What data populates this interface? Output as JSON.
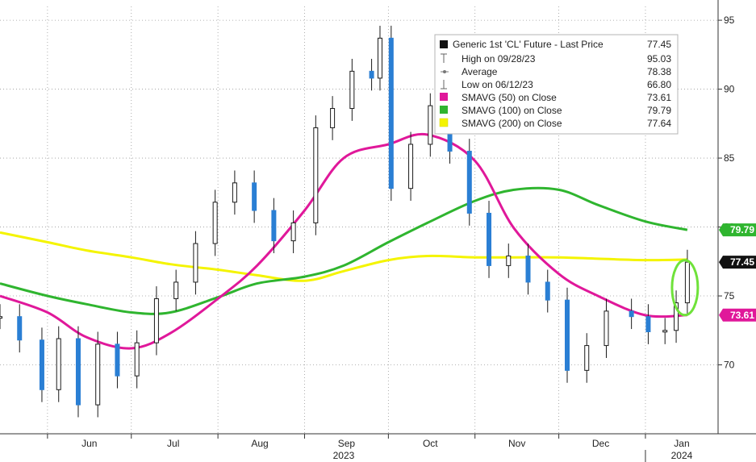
{
  "chart_data": {
    "type": "line",
    "title": "",
    "xlabel": "",
    "ylabel": "",
    "ylim": [
      65,
      96
    ],
    "y_ticks": [
      "95",
      "90",
      "85",
      "80",
      "75",
      "70"
    ],
    "y_tick_values": [
      95,
      90,
      85,
      80,
      75,
      70
    ],
    "x_month_labels": [
      "Jun",
      "Jul",
      "Aug",
      "Sep",
      "Oct",
      "Nov",
      "Dec",
      "Jan"
    ],
    "x_year_labels": [
      "2023",
      "2024"
    ],
    "grid": true,
    "legend_position": "top-right",
    "legend": {
      "title_label": "Generic 1st 'CL' Future - Last Price",
      "title_value": "77.45",
      "rows": [
        {
          "label": "High on 09/28/23",
          "value": "95.03",
          "marker": "high-icon"
        },
        {
          "label": "Average",
          "value": "78.38",
          "marker": "average-icon"
        },
        {
          "label": "Low on 06/12/23",
          "value": "66.80",
          "marker": "low-icon"
        },
        {
          "label": "SMAVG (50)  on Close",
          "value": "73.61",
          "color": "#e0189a"
        },
        {
          "label": "SMAVG (100)  on Close",
          "value": "79.79",
          "color": "#2fb52f"
        },
        {
          "label": "SMAVG (200)  on Close",
          "value": "77.64",
          "color": "#f4f400"
        }
      ]
    },
    "badges": [
      {
        "text": "79.79",
        "value": 79.79,
        "bg": "#2fb52f",
        "fg": "#ffffff"
      },
      {
        "text": "77.45",
        "value": 77.45,
        "bg": "#111111",
        "fg": "#ffffff"
      },
      {
        "text": "73.61",
        "value": 73.61,
        "bg": "#e0189a",
        "fg": "#ffffff"
      }
    ],
    "price_color": "#2a7fd4",
    "series": [
      {
        "name": "SMAVG (200)  on Close",
        "color": "#f4f400",
        "x": [
          "2023-05-15",
          "2023-06-01",
          "2023-06-15",
          "2023-07-01",
          "2023-07-15",
          "2023-08-01",
          "2023-08-15",
          "2023-09-01",
          "2023-09-15",
          "2023-10-01",
          "2023-10-15",
          "2023-11-01",
          "2023-11-15",
          "2023-12-01",
          "2023-12-15",
          "2024-01-01",
          "2024-01-16"
        ],
        "values": [
          79.6,
          78.9,
          78.3,
          77.8,
          77.3,
          76.9,
          76.5,
          76.1,
          76.8,
          77.6,
          77.9,
          77.8,
          77.8,
          77.8,
          77.7,
          77.6,
          77.64
        ]
      },
      {
        "name": "SMAVG (100)  on Close",
        "color": "#2fb52f",
        "x": [
          "2023-05-15",
          "2023-06-01",
          "2023-06-15",
          "2023-07-01",
          "2023-07-15",
          "2023-08-01",
          "2023-08-15",
          "2023-09-01",
          "2023-09-15",
          "2023-10-01",
          "2023-10-15",
          "2023-11-01",
          "2023-11-15",
          "2023-12-01",
          "2023-12-15",
          "2024-01-01",
          "2024-01-16"
        ],
        "values": [
          75.9,
          75.0,
          74.4,
          73.8,
          73.8,
          74.9,
          75.9,
          76.4,
          77.2,
          78.9,
          80.3,
          81.9,
          82.7,
          82.7,
          81.6,
          80.4,
          79.79
        ]
      },
      {
        "name": "SMAVG (50)  on Close",
        "color": "#e0189a",
        "x": [
          "2023-05-15",
          "2023-06-01",
          "2023-06-15",
          "2023-07-01",
          "2023-07-15",
          "2023-08-01",
          "2023-08-15",
          "2023-09-01",
          "2023-09-15",
          "2023-10-01",
          "2023-10-15",
          "2023-11-01",
          "2023-11-15",
          "2023-12-01",
          "2023-12-15",
          "2024-01-01",
          "2024-01-16"
        ],
        "values": [
          75.0,
          73.8,
          72.0,
          71.2,
          72.3,
          74.8,
          77.2,
          81.2,
          85.0,
          86.0,
          86.7,
          84.8,
          79.9,
          76.6,
          75.0,
          73.6,
          73.61
        ]
      },
      {
        "name": "Generic 1st 'CL' Future - Last Price",
        "color": "#2a7fd4",
        "x": [
          "2023-05-15",
          "2023-05-22",
          "2023-05-30",
          "2023-06-05",
          "2023-06-12",
          "2023-06-19",
          "2023-06-26",
          "2023-07-03",
          "2023-07-10",
          "2023-07-17",
          "2023-07-24",
          "2023-07-31",
          "2023-08-07",
          "2023-08-14",
          "2023-08-21",
          "2023-08-28",
          "2023-09-05",
          "2023-09-11",
          "2023-09-18",
          "2023-09-25",
          "2023-09-28",
          "2023-10-02",
          "2023-10-09",
          "2023-10-16",
          "2023-10-23",
          "2023-10-30",
          "2023-11-06",
          "2023-11-13",
          "2023-11-20",
          "2023-11-27",
          "2023-12-04",
          "2023-12-11",
          "2023-12-18",
          "2023-12-27",
          "2024-01-02",
          "2024-01-08",
          "2024-01-12",
          "2024-01-16"
        ],
        "values": [
          73.5,
          71.8,
          68.2,
          71.9,
          67.1,
          71.5,
          69.2,
          71.6,
          74.8,
          76.0,
          78.8,
          81.8,
          83.2,
          81.2,
          79.0,
          80.3,
          87.2,
          88.6,
          91.3,
          90.8,
          93.7,
          82.8,
          86.0,
          88.8,
          85.5,
          81.0,
          77.2,
          77.9,
          76.0,
          74.7,
          69.6,
          71.4,
          73.9,
          73.5,
          72.4,
          72.5,
          74.5,
          77.45
        ]
      }
    ]
  }
}
